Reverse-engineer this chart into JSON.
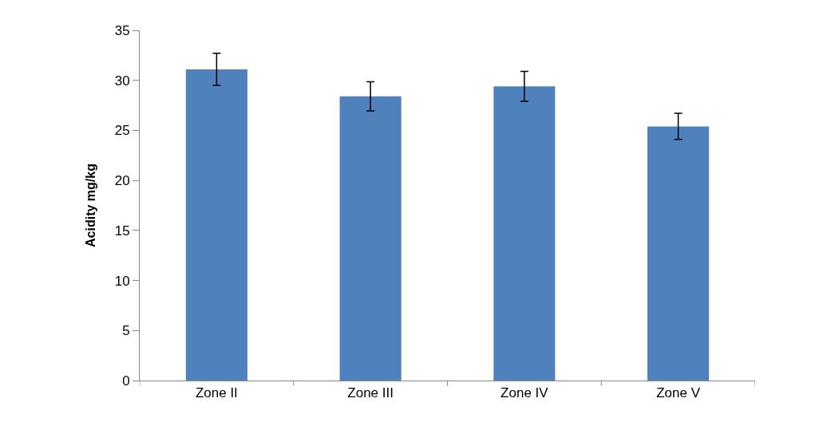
{
  "chart_data": {
    "type": "bar",
    "ylabel": "Acidity mg/kg",
    "categories": [
      "Zone II",
      "Zone III",
      "Zone IV",
      "Zone V"
    ],
    "values": [
      31.1,
      28.4,
      29.4,
      25.4
    ],
    "errors": [
      1.6,
      1.45,
      1.5,
      1.3
    ],
    "color": "#4f81bd",
    "ylim": [
      0,
      35
    ],
    "yticks": [
      0,
      5,
      10,
      15,
      20,
      25,
      30,
      35
    ]
  }
}
